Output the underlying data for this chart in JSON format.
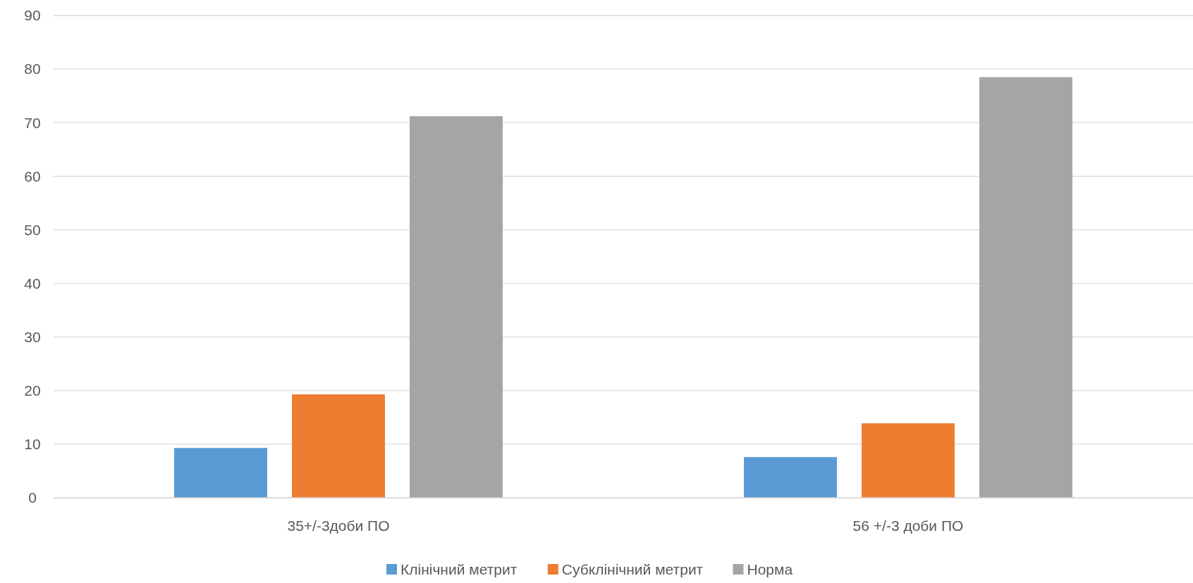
{
  "chart_data": {
    "type": "bar",
    "categories": [
      "35+/-3доби ПО",
      "56 +/-3 доби ПО"
    ],
    "series": [
      {
        "name": "Клінічний метрит",
        "color": "#5b9bd5",
        "values": [
          9.3,
          7.6
        ]
      },
      {
        "name": "Субклінічний метрит",
        "color": "#ed7d31",
        "values": [
          19.3,
          13.9
        ]
      },
      {
        "name": "Норма",
        "color": "#a5a5a5",
        "values": [
          71.2,
          78.5
        ]
      }
    ],
    "ylim": [
      0,
      90
    ],
    "yticks": [
      0,
      10,
      20,
      30,
      40,
      50,
      60,
      70,
      80,
      90
    ],
    "grid": "y",
    "legend": "bottom"
  }
}
